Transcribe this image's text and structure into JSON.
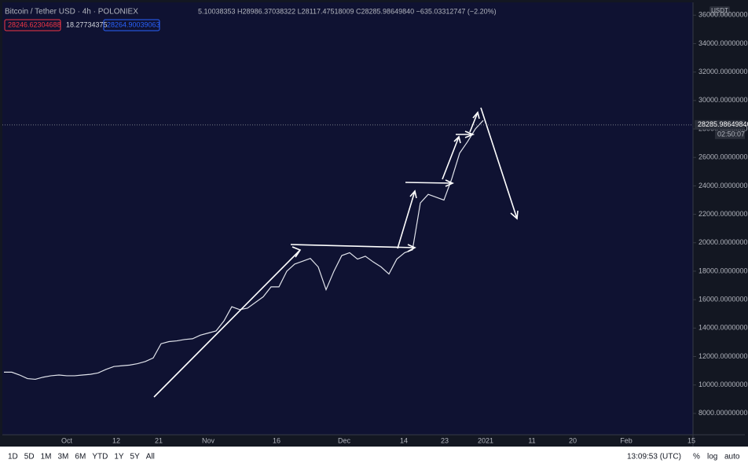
{
  "header": {
    "symbol": "Bitcoin / Tether USD · 4h · POLONIEX",
    "ohlc": "5.10038353 H28986.37038322 L28117.47518009 C28285.98649840 −635.03312747 (−2.20%)",
    "bid": "28246.62304688",
    "spread": "18.27734375",
    "ask": "28264.90039063",
    "currency": "USDT"
  },
  "chart_data": {
    "type": "line",
    "color": "#e0e3eb",
    "values": [
      10900,
      10900,
      10700,
      10450,
      10400,
      10550,
      10650,
      10700,
      10650,
      10650,
      10700,
      10750,
      10850,
      11100,
      11300,
      11350,
      11400,
      11500,
      11650,
      11900,
      12900,
      13050,
      13100,
      13200,
      13250,
      13500,
      13650,
      13800,
      14500,
      15500,
      15300,
      15400,
      15800,
      16200,
      16900,
      16900,
      18000,
      18500,
      18700,
      18900,
      18300,
      16700,
      18000,
      19100,
      19300,
      18850,
      19050,
      18650,
      18300,
      17800,
      18850,
      19300,
      19500,
      22800,
      23400,
      23200,
      23000,
      24500,
      26300,
      27100,
      28000,
      28600
    ],
    "ylim": [
      6500,
      36900
    ],
    "yticks": [
      {
        "value": 8000,
        "label": "8000.00000000"
      },
      {
        "value": 10000,
        "label": "10000.00000000"
      },
      {
        "value": 12000,
        "label": "12000.00000000"
      },
      {
        "value": 14000,
        "label": "14000.00000000"
      },
      {
        "value": 16000,
        "label": "16000.00000000"
      },
      {
        "value": 18000,
        "label": "18000.00000000"
      },
      {
        "value": 20000,
        "label": "20000.00000000"
      },
      {
        "value": 22000,
        "label": "22000.00000000"
      },
      {
        "value": 24000,
        "label": "24000.00000000"
      },
      {
        "value": 26000,
        "label": "26000.00000000"
      },
      {
        "value": 28000,
        "label": "28000.00000000"
      },
      {
        "value": 30000,
        "label": "30000.00000000"
      },
      {
        "value": 32000,
        "label": "32000.00000000"
      },
      {
        "value": 34000,
        "label": "34000.00000000"
      },
      {
        "value": 36000,
        "label": "36000.00000000"
      }
    ],
    "xticks": [
      "Oct",
      "12",
      "21",
      "Nov",
      "16",
      "Dec",
      "14",
      "23",
      "2021",
      "11",
      "20",
      "Feb",
      "15"
    ],
    "grid": false,
    "last_price": {
      "value": 28285.9864984,
      "label": "28285.98649840"
    },
    "countdown": "02:50:07"
  },
  "toolbar": {
    "ranges": [
      "1D",
      "5D",
      "1M",
      "3M",
      "6M",
      "YTD",
      "1Y",
      "5Y",
      "All"
    ],
    "time": "13:09:53 (UTC)",
    "percent": "%",
    "log": "log",
    "auto": "auto"
  }
}
